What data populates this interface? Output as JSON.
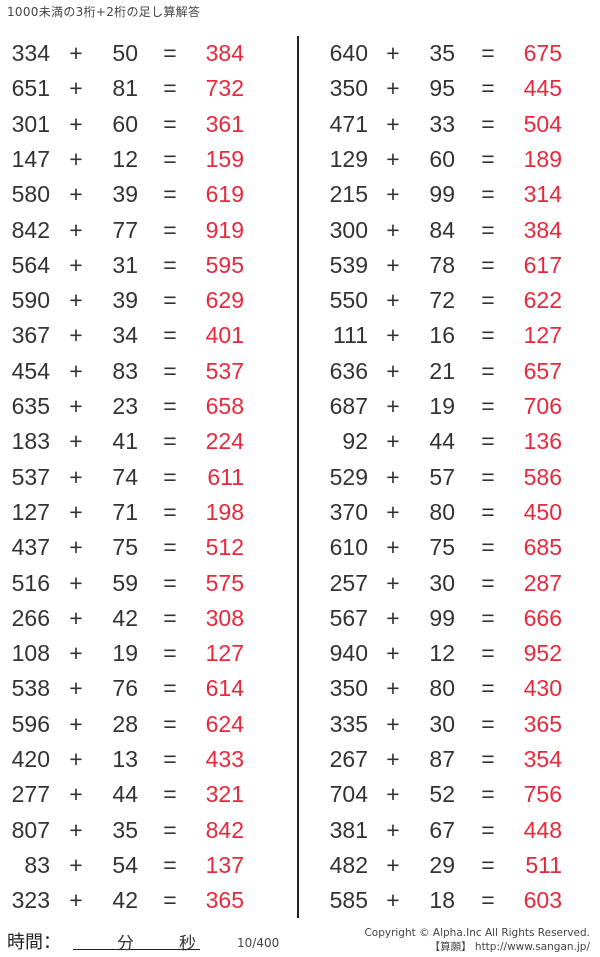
{
  "title": "1000未満の3桁+2桁の足し算解答",
  "operator": "+",
  "equals": "=",
  "answer_color": "#e8283c",
  "left": [
    [
      "334",
      "50",
      "384"
    ],
    [
      "651",
      "81",
      "732"
    ],
    [
      "301",
      "60",
      "361"
    ],
    [
      "147",
      "12",
      "159"
    ],
    [
      "580",
      "39",
      "619"
    ],
    [
      "842",
      "77",
      "919"
    ],
    [
      "564",
      "31",
      "595"
    ],
    [
      "590",
      "39",
      "629"
    ],
    [
      "367",
      "34",
      "401"
    ],
    [
      "454",
      "83",
      "537"
    ],
    [
      "635",
      "23",
      "658"
    ],
    [
      "183",
      "41",
      "224"
    ],
    [
      "537",
      "74",
      "611"
    ],
    [
      "127",
      "71",
      "198"
    ],
    [
      "437",
      "75",
      "512"
    ],
    [
      "516",
      "59",
      "575"
    ],
    [
      "266",
      "42",
      "308"
    ],
    [
      "108",
      "19",
      "127"
    ],
    [
      "538",
      "76",
      "614"
    ],
    [
      "596",
      "28",
      "624"
    ],
    [
      "420",
      "13",
      "433"
    ],
    [
      "277",
      "44",
      "321"
    ],
    [
      "807",
      "35",
      "842"
    ],
    [
      "83",
      "54",
      "137"
    ],
    [
      "323",
      "42",
      "365"
    ]
  ],
  "right": [
    [
      "640",
      "35",
      "675"
    ],
    [
      "350",
      "95",
      "445"
    ],
    [
      "471",
      "33",
      "504"
    ],
    [
      "129",
      "60",
      "189"
    ],
    [
      "215",
      "99",
      "314"
    ],
    [
      "300",
      "84",
      "384"
    ],
    [
      "539",
      "78",
      "617"
    ],
    [
      "550",
      "72",
      "622"
    ],
    [
      "111",
      "16",
      "127"
    ],
    [
      "636",
      "21",
      "657"
    ],
    [
      "687",
      "19",
      "706"
    ],
    [
      "92",
      "44",
      "136"
    ],
    [
      "529",
      "57",
      "586"
    ],
    [
      "370",
      "80",
      "450"
    ],
    [
      "610",
      "75",
      "685"
    ],
    [
      "257",
      "30",
      "287"
    ],
    [
      "567",
      "99",
      "666"
    ],
    [
      "940",
      "12",
      "952"
    ],
    [
      "350",
      "80",
      "430"
    ],
    [
      "335",
      "30",
      "365"
    ],
    [
      "267",
      "87",
      "354"
    ],
    [
      "704",
      "52",
      "756"
    ],
    [
      "381",
      "67",
      "448"
    ],
    [
      "482",
      "29",
      "511"
    ],
    [
      "585",
      "18",
      "603"
    ]
  ],
  "footer": {
    "time_label": "時間：",
    "minutes": "分",
    "seconds": "秒",
    "page": "10/400",
    "copyright": "Copyright © Alpha.Inc All Rights Reserved.",
    "site": "【算願】 http://www.sangan.jp/"
  }
}
